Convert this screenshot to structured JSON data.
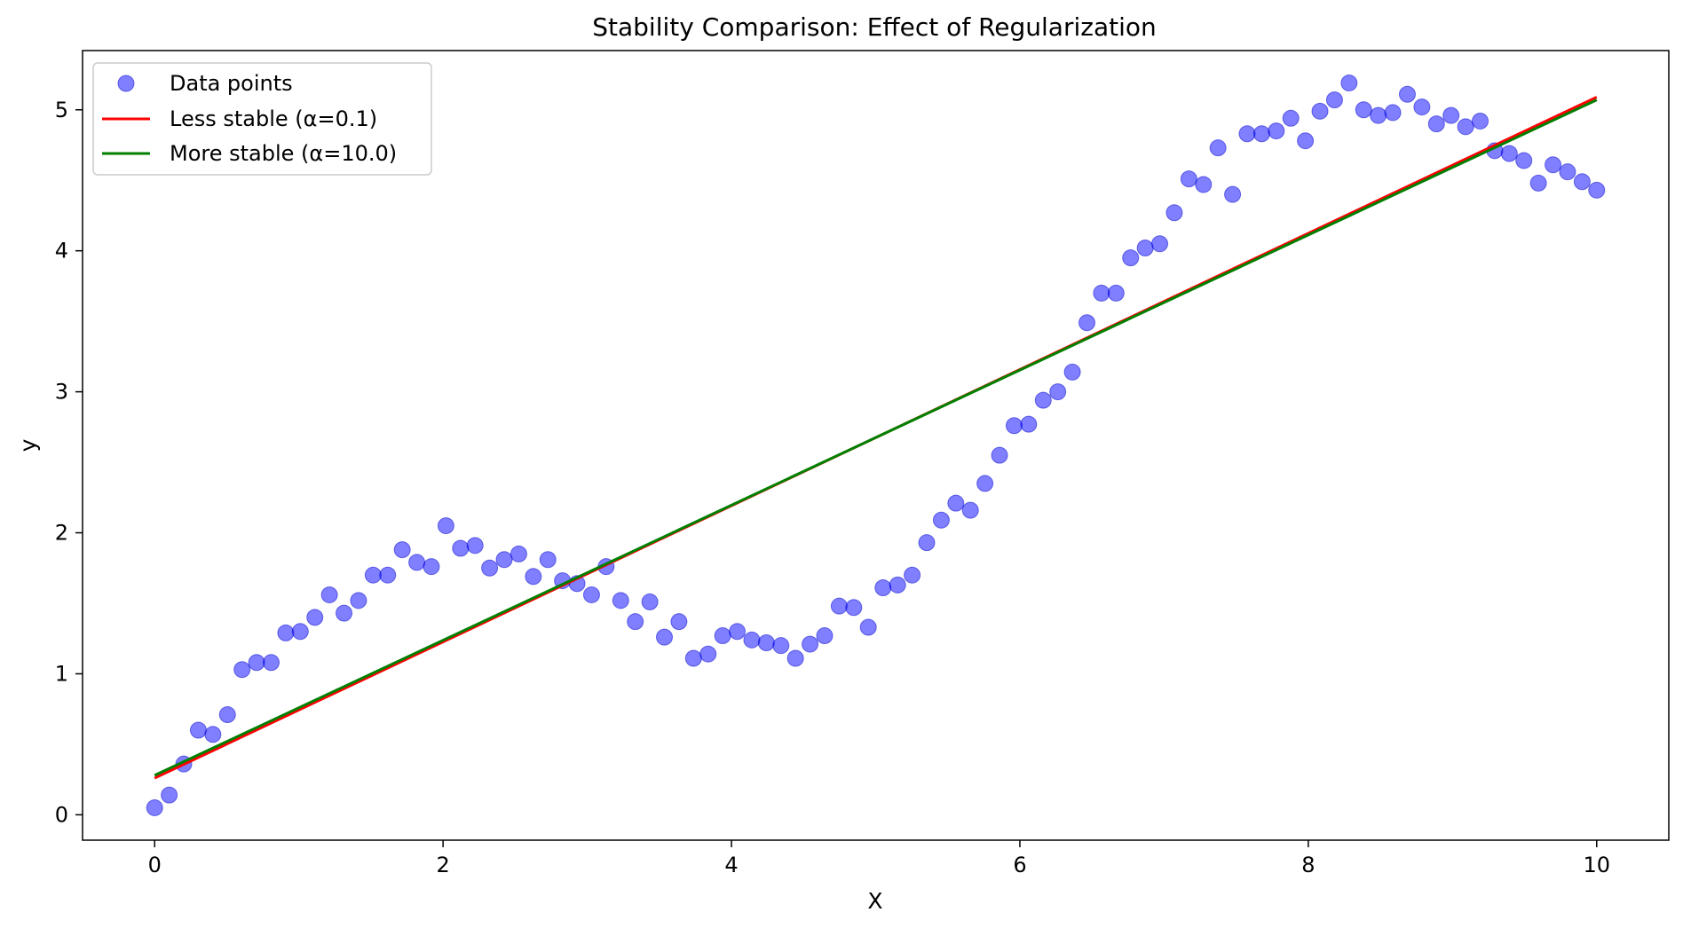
{
  "chart_data": {
    "type": "scatter",
    "title": "Stability Comparison: Effect of Regularization",
    "xlabel": "X",
    "ylabel": "y",
    "xlim": [
      -0.5,
      10.5
    ],
    "ylim": [
      -0.18,
      5.42
    ],
    "xticks": [
      0,
      2,
      4,
      6,
      8,
      10
    ],
    "yticks": [
      0,
      1,
      2,
      3,
      4,
      5
    ],
    "grid": false,
    "legend_position": "top-left",
    "legend": [
      "Data points",
      "Less stable (α=0.1)",
      "More stable (α=10.0)"
    ],
    "colors": {
      "points": "#0000ff",
      "points_edge": "#0000cc",
      "less_stable": "#ff0000",
      "more_stable": "#008000",
      "axes": "#000000"
    },
    "scatter": {
      "name": "Data points",
      "x": [
        0.0,
        0.101,
        0.202,
        0.303,
        0.404,
        0.505,
        0.606,
        0.707,
        0.808,
        0.909,
        1.01,
        1.111,
        1.212,
        1.313,
        1.414,
        1.515,
        1.616,
        1.717,
        1.818,
        1.919,
        2.02,
        2.121,
        2.222,
        2.323,
        2.424,
        2.525,
        2.626,
        2.727,
        2.828,
        2.929,
        3.03,
        3.131,
        3.232,
        3.333,
        3.434,
        3.535,
        3.636,
        3.737,
        3.838,
        3.939,
        4.04,
        4.141,
        4.242,
        4.343,
        4.444,
        4.545,
        4.646,
        4.747,
        4.848,
        4.949,
        5.051,
        5.152,
        5.253,
        5.354,
        5.455,
        5.556,
        5.657,
        5.758,
        5.859,
        5.96,
        6.061,
        6.162,
        6.263,
        6.364,
        6.465,
        6.566,
        6.667,
        6.768,
        6.869,
        6.97,
        7.071,
        7.172,
        7.273,
        7.374,
        7.475,
        7.576,
        7.677,
        7.778,
        7.879,
        7.98,
        8.081,
        8.182,
        8.283,
        8.384,
        8.485,
        8.586,
        8.687,
        8.788,
        8.889,
        8.99,
        9.091,
        9.192,
        9.293,
        9.394,
        9.495,
        9.596,
        9.697,
        9.798,
        9.899,
        10.0
      ],
      "y": [
        0.05,
        0.14,
        0.36,
        0.6,
        0.57,
        0.71,
        1.03,
        1.08,
        1.08,
        1.29,
        1.3,
        1.4,
        1.56,
        1.43,
        1.52,
        1.7,
        1.7,
        1.88,
        1.79,
        1.76,
        2.05,
        1.89,
        1.91,
        1.75,
        1.81,
        1.85,
        1.69,
        1.81,
        1.66,
        1.64,
        1.56,
        1.76,
        1.52,
        1.37,
        1.51,
        1.26,
        1.37,
        1.11,
        1.14,
        1.27,
        1.3,
        1.24,
        1.22,
        1.2,
        1.11,
        1.21,
        1.27,
        1.48,
        1.47,
        1.33,
        1.61,
        1.63,
        1.7,
        1.93,
        2.09,
        2.21,
        2.16,
        2.35,
        2.55,
        2.76,
        2.77,
        2.94,
        3.0,
        3.14,
        3.49,
        3.7,
        3.7,
        3.95,
        4.02,
        4.05,
        4.27,
        4.51,
        4.47,
        4.73,
        4.4,
        4.83,
        4.83,
        4.85,
        4.94,
        4.78,
        4.99,
        5.07,
        5.19,
        5.0,
        4.96,
        4.98,
        5.11,
        5.02,
        4.9,
        4.96,
        4.88,
        4.92,
        4.71,
        4.69,
        4.64,
        4.48,
        4.61,
        4.56,
        4.49,
        4.43
      ]
    },
    "series": [
      {
        "name": "Less stable (α=0.1)",
        "x": [
          0,
          10
        ],
        "y": [
          0.26,
          5.09
        ]
      },
      {
        "name": "More stable (α=10.0)",
        "x": [
          0,
          10
        ],
        "y": [
          0.28,
          5.07
        ]
      }
    ]
  }
}
